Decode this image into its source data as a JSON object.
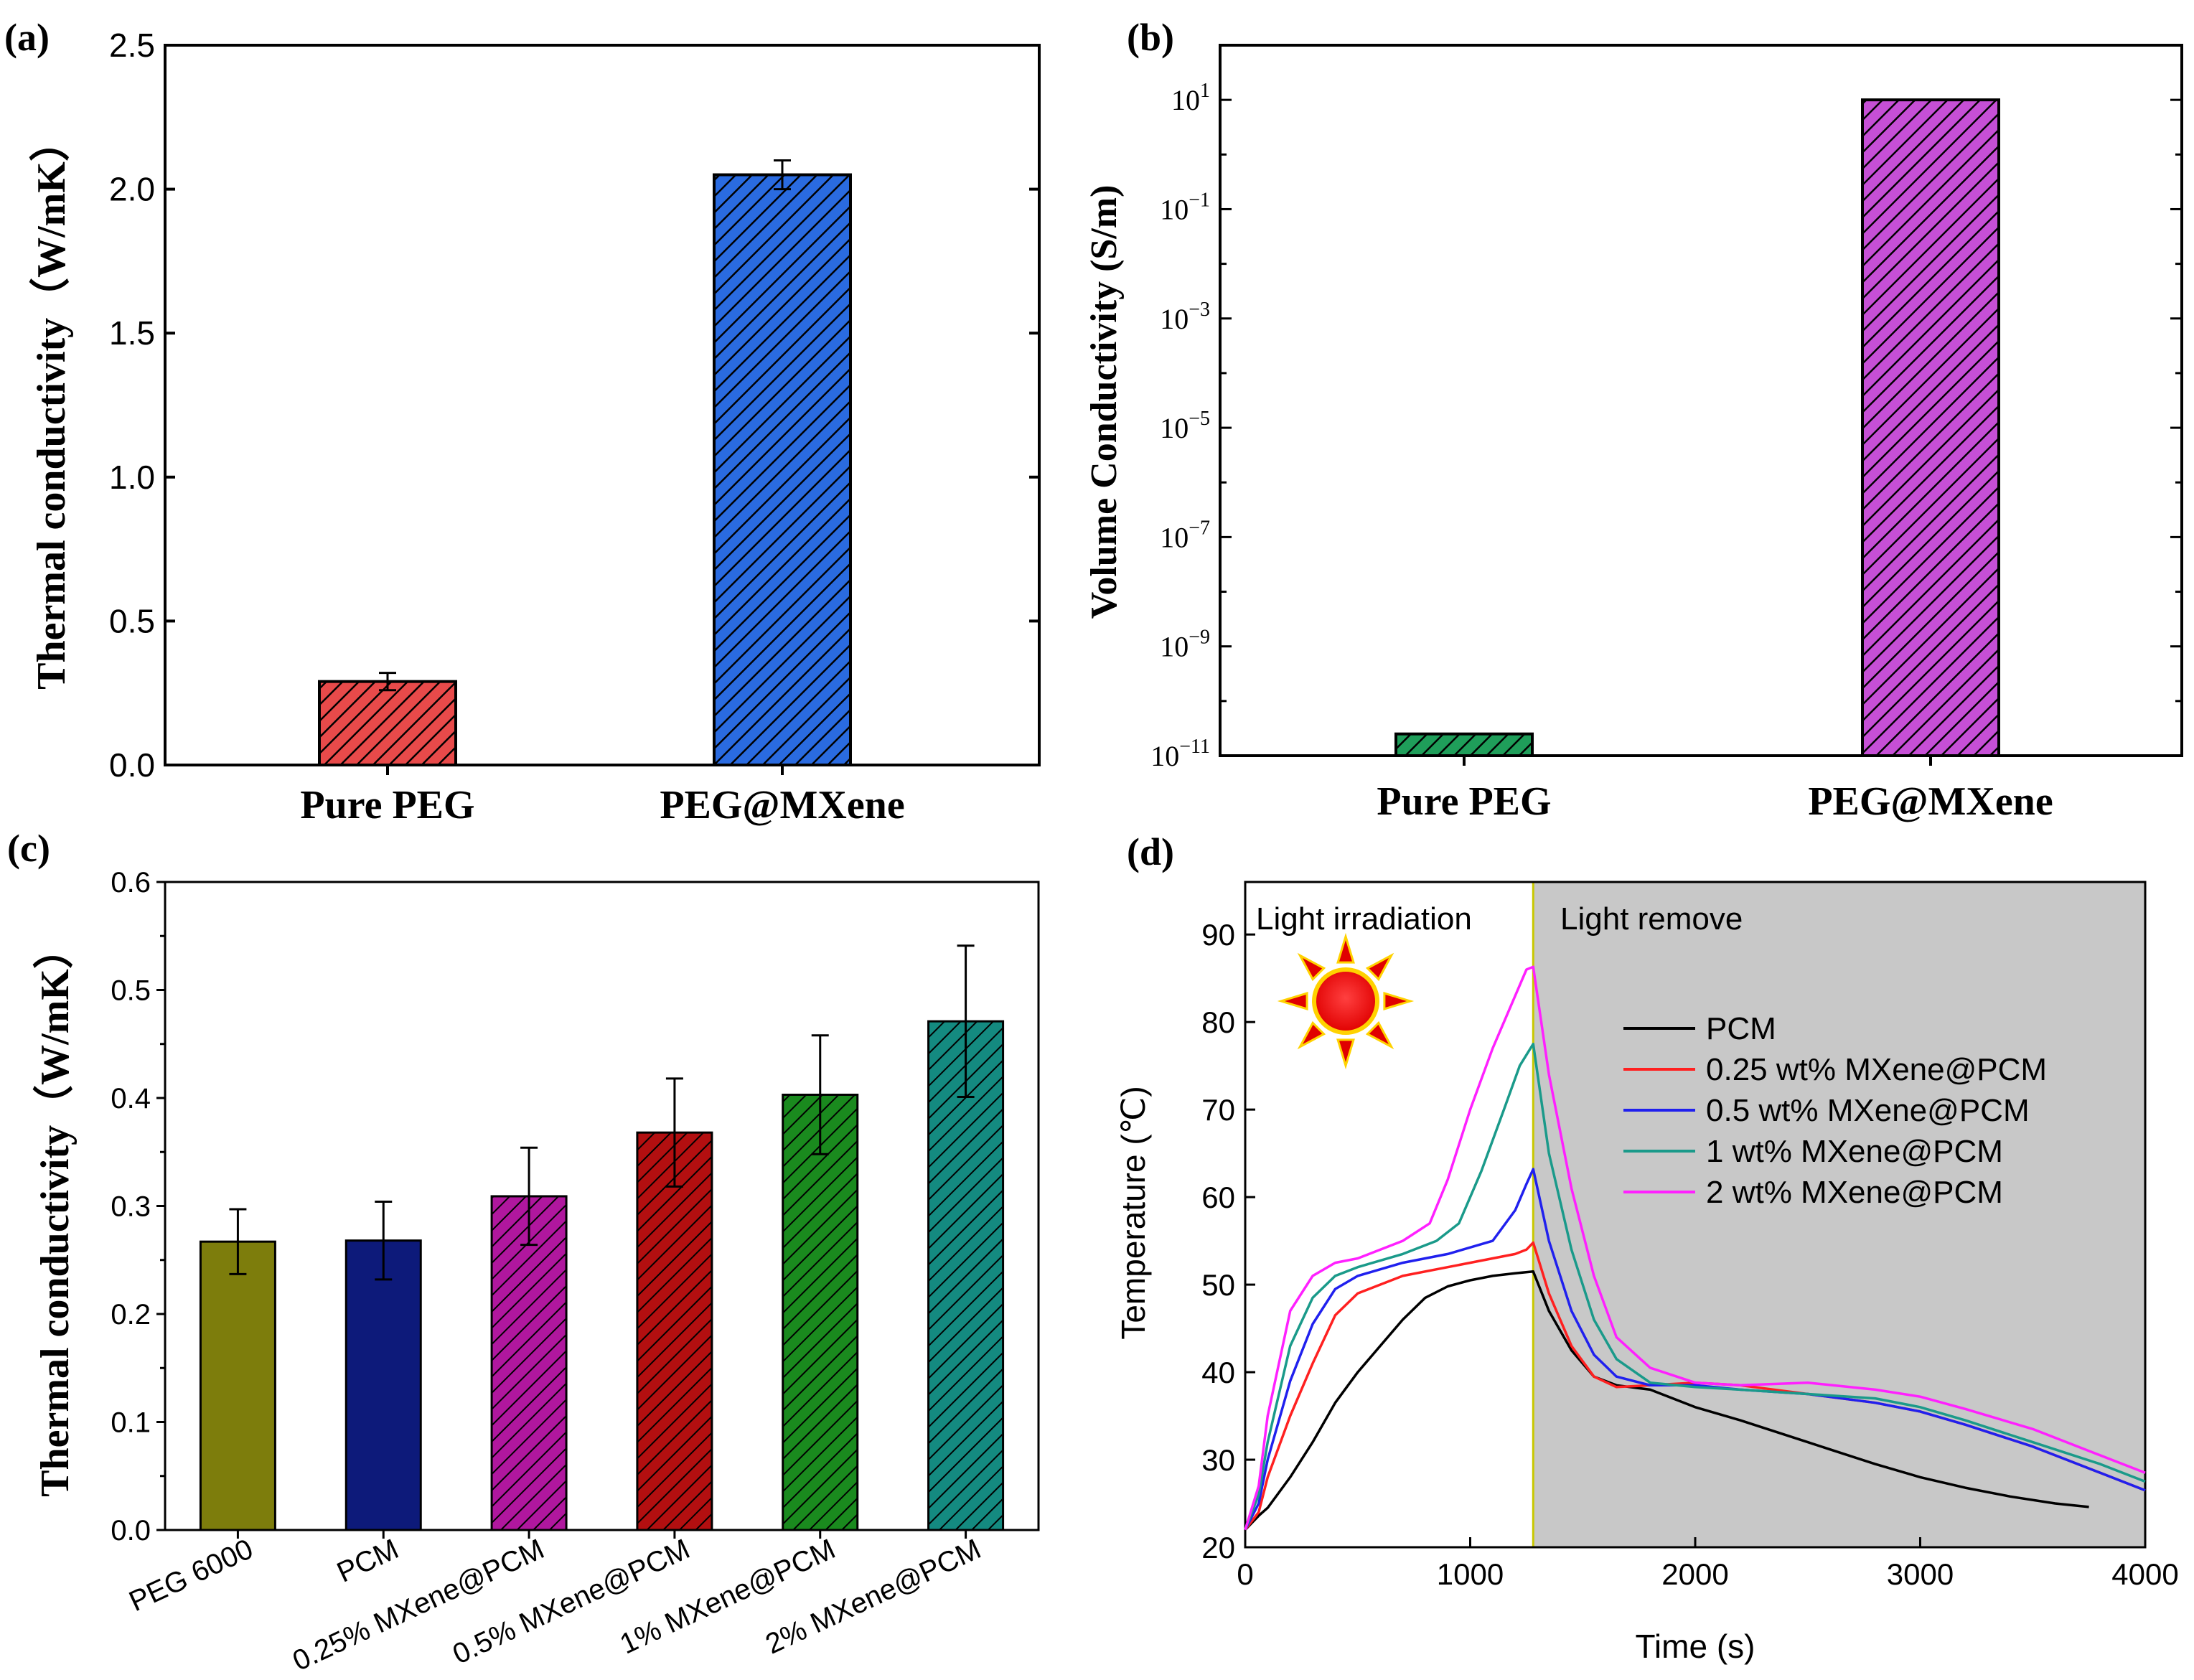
{
  "figure": {
    "panels": [
      {
        "label": "(a)",
        "chart_data": {
          "type": "bar",
          "categories": [
            "Pure PEG",
            "PEG@MXene"
          ],
          "values": [
            0.29,
            2.05
          ],
          "errors": [
            0.03,
            0.05
          ],
          "bar_colors": [
            "#e84a4a",
            "#2a6be0"
          ],
          "ylabel": "Thermal conductivity（W/mK）",
          "xlabel": "",
          "ylim": [
            0,
            2.5
          ],
          "yticks": [
            0.0,
            0.5,
            1.0,
            1.5,
            2.0,
            2.5
          ],
          "ytick_labels": [
            "0.0",
            "0.5",
            "1.0",
            "1.5",
            "2.0",
            "2.5"
          ],
          "hatch": "diagonal"
        }
      },
      {
        "label": "(b)",
        "chart_data": {
          "type": "bar",
          "yscale": "log",
          "categories": [
            "Pure PEG",
            "PEG@MXene"
          ],
          "values": [
            2.5e-11,
            10
          ],
          "bar_colors": [
            "#1f9e5a",
            "#c64fd6"
          ],
          "ylabel": "Volume Conductivity (S/m)",
          "xlabel": "",
          "ylim_exp": [
            -11,
            2
          ],
          "yticks_exp": [
            1,
            -1,
            -3,
            -5,
            -7,
            -9,
            -11
          ],
          "ytick_labels": [
            "10",
            "10",
            "10",
            "10",
            "10",
            "10",
            "10"
          ],
          "ytick_exponents": [
            "1",
            "−1",
            "−3",
            "−5",
            "−7",
            "−9",
            "−11"
          ],
          "hatch": "diagonal"
        }
      },
      {
        "label": "(c)",
        "chart_data": {
          "type": "bar",
          "categories": [
            "PEG 6000",
            "PCM",
            "0.25% MXene@PCM",
            "0.5% MXene@PCM",
            "1% MXene@PCM",
            "2% MXene@PCM"
          ],
          "values": [
            0.267,
            0.268,
            0.309,
            0.368,
            0.403,
            0.471
          ],
          "errors": [
            0.03,
            0.036,
            0.045,
            0.05,
            0.055,
            0.07
          ],
          "bar_colors": [
            "#7d7d0c",
            "#0d1a7a",
            "#b0179e",
            "#b30f10",
            "#1a8a1e",
            "#148a80"
          ],
          "ylabel": "Thermal conductivity（W/mK）",
          "xlabel": "",
          "ylim": [
            0,
            0.6
          ],
          "yticks": [
            0.0,
            0.1,
            0.2,
            0.3,
            0.4,
            0.5,
            0.6
          ],
          "ytick_labels": [
            "0.0",
            "0.1",
            "0.2",
            "0.3",
            "0.4",
            "0.5",
            "0.6"
          ],
          "hatch": "diagonal"
        }
      },
      {
        "label": "(d)",
        "chart_data": {
          "type": "line",
          "xlabel": "Time (s)",
          "ylabel": "Temperature (℃)",
          "xlim": [
            0,
            4000
          ],
          "ylim": [
            20,
            96
          ],
          "xticks": [
            0,
            1000,
            2000,
            3000,
            4000
          ],
          "xtick_labels": [
            "0",
            "1000",
            "2000",
            "3000",
            "4000"
          ],
          "yticks": [
            20,
            30,
            40,
            50,
            60,
            70,
            80,
            90
          ],
          "ytick_labels": [
            "20",
            "30",
            "40",
            "50",
            "60",
            "70",
            "80",
            "90"
          ],
          "split_x": 1280,
          "region_labels": [
            "Light irradiation",
            "Light remove"
          ],
          "legend_position": "center-right",
          "series": [
            {
              "name": "PCM",
              "color": "#000000",
              "x": [
                0,
                60,
                100,
                200,
                300,
                400,
                500,
                600,
                700,
                800,
                900,
                1000,
                1100,
                1200,
                1280,
                1350,
                1450,
                1550,
                1650,
                1800,
                2000,
                2200,
                2500,
                2800,
                3000,
                3200,
                3400,
                3600,
                3750
              ],
              "y": [
                22,
                23.6,
                24.5,
                28,
                32,
                36.5,
                40,
                43,
                46,
                48.5,
                49.8,
                50.5,
                51,
                51.3,
                51.5,
                47,
                42.5,
                39.5,
                38.5,
                38,
                36,
                34.5,
                32,
                29.5,
                28,
                26.8,
                25.8,
                25,
                24.6
              ]
            },
            {
              "name": "0.25 wt% MXene@PCM",
              "color": "#ff2020",
              "x": [
                0,
                60,
                100,
                200,
                300,
                400,
                500,
                700,
                900,
                1100,
                1200,
                1250,
                1280,
                1350,
                1450,
                1550,
                1650,
                1800,
                2000,
                2200,
                2500,
                2800,
                3000,
                3200,
                3500,
                3800,
                4000
              ],
              "y": [
                22,
                24,
                28,
                35,
                41,
                46.5,
                49,
                51,
                52,
                53,
                53.5,
                54,
                54.8,
                49,
                43,
                39.5,
                38.3,
                38.5,
                38.8,
                38.5,
                37.5,
                36.5,
                35.5,
                34,
                31.5,
                28.5,
                26.5
              ]
            },
            {
              "name": "0.5 wt% MXene@PCM",
              "color": "#2020ee",
              "x": [
                0,
                60,
                100,
                200,
                300,
                400,
                500,
                700,
                900,
                1100,
                1200,
                1250,
                1280,
                1350,
                1450,
                1550,
                1650,
                1800,
                2000,
                2200,
                2500,
                2800,
                3000,
                3200,
                3500,
                3800,
                4000
              ],
              "y": [
                22,
                25,
                30,
                39,
                45.5,
                49.5,
                51,
                52.5,
                53.5,
                55,
                58.5,
                61.5,
                63.2,
                55,
                47,
                42,
                39.5,
                38.5,
                38.5,
                38,
                37.5,
                36.5,
                35.5,
                34,
                31.5,
                28.5,
                26.5
              ]
            },
            {
              "name": "1 wt% MXene@PCM",
              "color": "#1a9a8a",
              "x": [
                0,
                60,
                100,
                200,
                300,
                400,
                500,
                700,
                850,
                950,
                1050,
                1150,
                1220,
                1280,
                1350,
                1450,
                1550,
                1650,
                1800,
                2000,
                2200,
                2500,
                2800,
                3000,
                3200,
                3500,
                3800,
                4000
              ],
              "y": [
                22,
                26,
                32,
                43,
                48.5,
                51,
                52,
                53.5,
                55,
                57,
                63,
                70,
                75,
                77.5,
                65,
                54,
                46,
                41.5,
                38.8,
                38.3,
                38,
                37.5,
                37,
                36,
                34.5,
                32,
                29.5,
                27.5
              ]
            },
            {
              "name": "2 wt% MXene@PCM",
              "color": "#ff20ff",
              "x": [
                0,
                60,
                100,
                200,
                300,
                400,
                500,
                700,
                820,
                900,
                1000,
                1100,
                1200,
                1250,
                1280,
                1350,
                1450,
                1550,
                1650,
                1800,
                2000,
                2200,
                2500,
                2800,
                3000,
                3200,
                3500,
                3800,
                4000
              ],
              "y": [
                22,
                27,
                35,
                47,
                51,
                52.5,
                53,
                55,
                57,
                62,
                70,
                77,
                83,
                86,
                86.3,
                74,
                61,
                51,
                44,
                40.5,
                38.8,
                38.5,
                38.8,
                38,
                37.2,
                35.8,
                33.5,
                30.5,
                28.5
              ]
            }
          ]
        }
      }
    ]
  }
}
